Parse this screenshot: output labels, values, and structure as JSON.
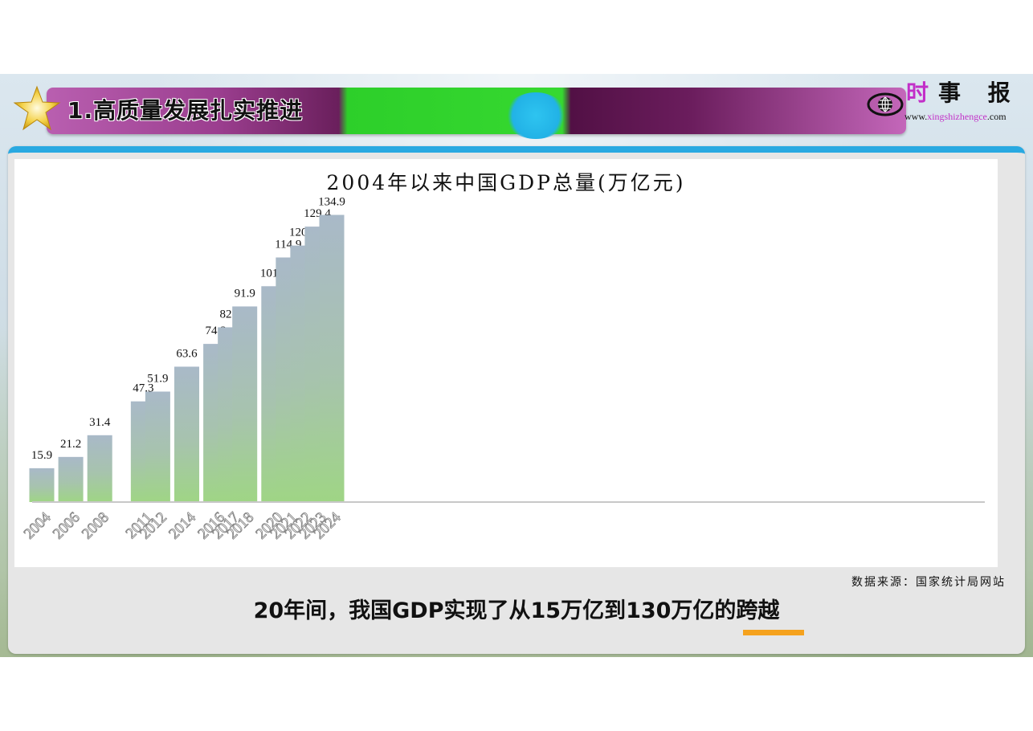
{
  "header": {
    "section_title": "1.高质量发展扎实推进"
  },
  "logo": {
    "name_accent": "时",
    "name_rest": "事 报 告",
    "url_prefix": "www.",
    "url_accent": "xingshizhengce",
    "url_suffix": ".com"
  },
  "footer": {
    "source": "数据来源：国家统计局网站",
    "caption": "20年间，我国GDP实现了从15万亿到130万亿的跨越"
  },
  "colors": {
    "bar_top": "#a9b9c8",
    "bar_bottom": "#9fd585",
    "accent_blue": "#29a9e1",
    "accent_orange": "#f5a21e"
  },
  "chart_data": {
    "type": "bar",
    "title": "2004年以来中国GDP总量(万亿元)",
    "xlabel": "",
    "ylabel": "",
    "ylim": [
      0,
      140
    ],
    "grid": false,
    "legend": "none",
    "categories": [
      "2004",
      "2006",
      "2008",
      "2011",
      "2012",
      "2014",
      "2016",
      "2017",
      "2018",
      "2020",
      "2021",
      "2022",
      "2023",
      "2024"
    ],
    "values": [
      15.9,
      21.2,
      31.4,
      47.3,
      51.9,
      63.6,
      74.3,
      82.1,
      91.9,
      101.4,
      114.9,
      120.5,
      129.4,
      134.9
    ],
    "value_labels": [
      "15.9",
      "21.2",
      "31.4",
      "47.3",
      "51.9",
      "63.6",
      "74.3",
      "82.1",
      "91.9",
      "101.4",
      "114.9",
      "120.5",
      "129.4",
      "134.9"
    ]
  }
}
